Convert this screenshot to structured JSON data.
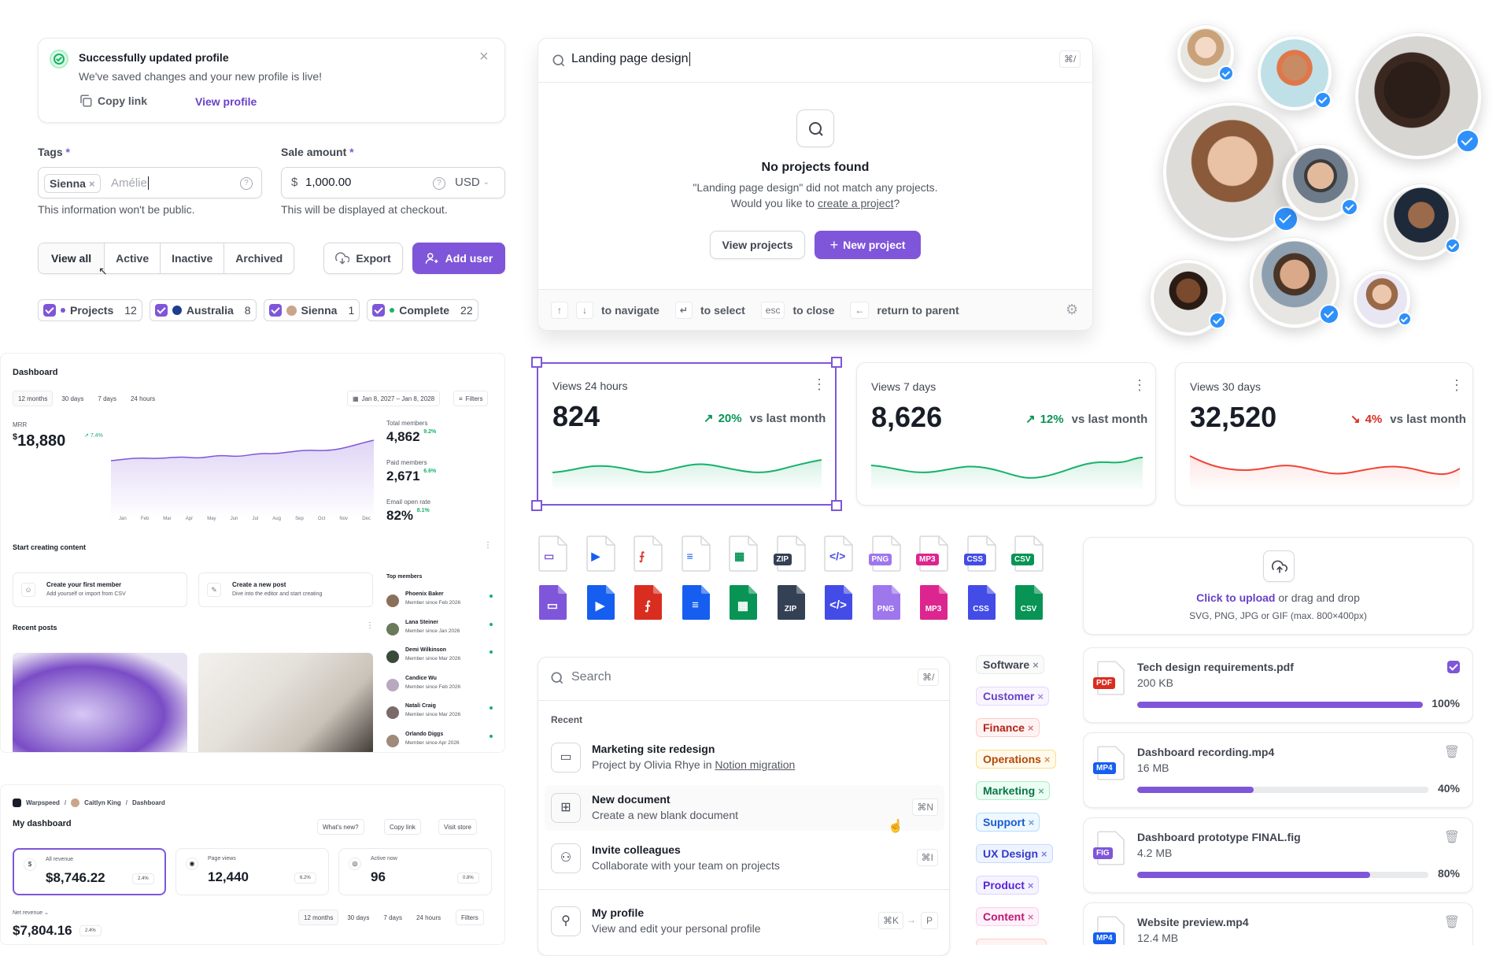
{
  "toast": {
    "title": "Successfully updated profile",
    "message": "We've saved changes and your new profile is live!",
    "copy_link": "Copy link",
    "view_profile": "View profile"
  },
  "tags_field": {
    "label": "Tags",
    "required": "*",
    "chip": "Sienna",
    "input_value": "Amélie",
    "hint": "This information won't be public."
  },
  "sale_field": {
    "label": "Sale amount",
    "required": "*",
    "currency_symbol": "$",
    "value": "1,000.00",
    "currency": "USD",
    "hint": "This will be displayed at checkout."
  },
  "filter_tabs": [
    "View all",
    "Active",
    "Inactive",
    "Archived"
  ],
  "actions": {
    "export": "Export",
    "add_user": "Add user"
  },
  "filter_chips": [
    {
      "label": "Projects",
      "count": "12",
      "dot": "#7f56d9"
    },
    {
      "label": "Australia",
      "count": "8",
      "dot": "#2e90fa"
    },
    {
      "label": "Sienna",
      "count": "1",
      "dot": "#b08968"
    },
    {
      "label": "Complete",
      "count": "22",
      "dot": "#17b26a"
    }
  ],
  "command": {
    "query": "Landing page design",
    "shortcut": "⌘/",
    "empty_title": "No projects found",
    "empty_line1": "\"Landing page design\" did not match any projects.",
    "empty_line2_pre": "Would you like to ",
    "empty_link": "create a project",
    "empty_line2_post": "?",
    "view_projects": "View projects",
    "new_project": "New project",
    "footer": {
      "navigate": "to navigate",
      "select": "to select",
      "esc": "esc",
      "close": "to close",
      "parent": "return to parent"
    }
  },
  "metrics": [
    {
      "title": "Views 24 hours",
      "value": "824",
      "delta": "20%",
      "trend": "up",
      "vs": "vs last month"
    },
    {
      "title": "Views 7 days",
      "value": "8,626",
      "delta": "12%",
      "trend": "up",
      "vs": "vs last month"
    },
    {
      "title": "Views 30 days",
      "value": "32,520",
      "delta": "4%",
      "trend": "down",
      "vs": "vs last month"
    }
  ],
  "colors": {
    "accent": "#7f56d9",
    "success": "#17b26a",
    "error": "#f04438",
    "blue": "#2e90fa"
  },
  "file_icons": [
    {
      "kind": "folder",
      "color": "#7f56d9"
    },
    {
      "kind": "video",
      "color": "#155eef"
    },
    {
      "kind": "pdf",
      "color": "#d92d20"
    },
    {
      "kind": "doc",
      "color": "#155eef"
    },
    {
      "kind": "sheet",
      "color": "#079455"
    },
    {
      "kind": "zip",
      "color": "#344054",
      "label": "ZIP"
    },
    {
      "kind": "code",
      "color": "#444ce7"
    },
    {
      "kind": "png",
      "color": "#9e77ed",
      "label": "PNG"
    },
    {
      "kind": "mp3",
      "color": "#dd2590",
      "label": "MP3"
    },
    {
      "kind": "css",
      "color": "#444ce7",
      "label": "CSS"
    },
    {
      "kind": "csv",
      "color": "#079455",
      "label": "CSV"
    }
  ],
  "upload": {
    "link": "Click to upload",
    "rest": " or drag and drop",
    "hint": "SVG, PNG, JPG or GIF (max. 800×400px)"
  },
  "uploads": [
    {
      "name": "Tech design requirements.pdf",
      "size": "200 KB",
      "pct": "100%",
      "progress": 1.0,
      "type": "PDF",
      "color": "#d92d20",
      "done": true
    },
    {
      "name": "Dashboard recording.mp4",
      "size": "16 MB",
      "pct": "40%",
      "progress": 0.4,
      "type": "MP4",
      "color": "#155eef",
      "done": false
    },
    {
      "name": "Dashboard prototype FINAL.fig",
      "size": "4.2 MB",
      "pct": "80%",
      "progress": 0.8,
      "type": "FIG",
      "color": "#7f56d9",
      "done": false
    },
    {
      "name": "Website preview.mp4",
      "size": "12.4 MB",
      "type": "MP4",
      "color": "#155eef",
      "done": false
    }
  ],
  "search": {
    "placeholder": "Search",
    "shortcut": "⌘/",
    "recent_label": "Recent",
    "items": [
      {
        "title": "Marketing site redesign",
        "sub_pre": "Project by Olivia Rhye in ",
        "sub_link": "Notion migration",
        "icon": "folder-icon"
      },
      {
        "title": "New document",
        "sub_pre": "Create a new blank document",
        "shortcut": "⌘N",
        "icon": "document-plus-icon"
      },
      {
        "title": "Invite colleagues",
        "sub_pre": "Collaborate with your team on projects",
        "shortcut": "⌘I",
        "icon": "user-plus-icon"
      },
      {
        "title": "My profile",
        "sub_pre": "View and edit your personal profile",
        "shortcut": "⌘K",
        "shortcut2": "P",
        "icon": "user-icon"
      }
    ]
  },
  "tags": [
    {
      "label": "Software",
      "bg": "#fafafa",
      "fg": "#414651",
      "bd": "#e9eaeb"
    },
    {
      "label": "Customer",
      "bg": "#f9f5ff",
      "fg": "#6941c6",
      "bd": "#e9d7fe"
    },
    {
      "label": "Finance",
      "bg": "#fef3f2",
      "fg": "#b42318",
      "bd": "#fecdca"
    },
    {
      "label": "Operations",
      "bg": "#fffaeb",
      "fg": "#b54708",
      "bd": "#fedf89"
    },
    {
      "label": "Marketing",
      "bg": "#ecfdf3",
      "fg": "#067647",
      "bd": "#abefc6"
    },
    {
      "label": "Support",
      "bg": "#eff8ff",
      "fg": "#175cd3",
      "bd": "#b2ddff"
    },
    {
      "label": "UX Design",
      "bg": "#eef4ff",
      "fg": "#3538cd",
      "bd": "#c7d7fe"
    },
    {
      "label": "Product",
      "bg": "#f4f3ff",
      "fg": "#5925dc",
      "bd": "#d9d6fe"
    },
    {
      "label": "Content",
      "bg": "#fdf2fa",
      "fg": "#c11574",
      "bd": "#fcceee"
    }
  ],
  "dash1": {
    "title": "Dashboard",
    "ranges": [
      "12 months",
      "30 days",
      "7 days",
      "24 hours"
    ],
    "date_range": "Jan 8, 2027 – Jan 8, 2028",
    "filters": "Filters",
    "mrr_label": "MRR",
    "mrr_currency": "$",
    "mrr_value": "18,880",
    "mrr_delta": "7.4%",
    "months": [
      "Jan",
      "Feb",
      "Mar",
      "Apr",
      "May",
      "Jun",
      "Jul",
      "Aug",
      "Sep",
      "Oct",
      "Nov",
      "Dec"
    ],
    "stats": [
      {
        "label": "Total members",
        "value": "4,862",
        "delta": "9.2%"
      },
      {
        "label": "Paid members",
        "value": "2,671",
        "delta": "6.6%"
      },
      {
        "label": "Email open rate",
        "value": "82%",
        "delta": "8.1%"
      }
    ],
    "start_title": "Start creating content",
    "tasks": [
      {
        "title": "Create your first member",
        "sub": "Add yourself or import from CSV"
      },
      {
        "title": "Create a new post",
        "sub": "Dive into the editor and start creating"
      }
    ],
    "recent_posts": "Recent posts",
    "top_members": "Top members",
    "members": [
      {
        "name": "Phoenix Baker",
        "since": "Member since Feb 2026"
      },
      {
        "name": "Lana Steiner",
        "since": "Member since Jan 2026"
      },
      {
        "name": "Demi Wilkinson",
        "since": "Member since Mar 2026"
      },
      {
        "name": "Candice Wu",
        "since": "Member since Feb 2026"
      },
      {
        "name": "Natali Craig",
        "since": "Member since Mar 2026"
      },
      {
        "name": "Orlando Diggs",
        "since": "Member since Apr 2026"
      }
    ]
  },
  "dash2": {
    "crumb1": "Warpspeed",
    "crumb2": "Caitlyn King",
    "crumb3": "Dashboard",
    "title": "My dashboard",
    "whats_new": "What's new?",
    "copy_link": "Copy link",
    "visit_store": "Visit store",
    "kpis": [
      {
        "label": "All revenue",
        "value": "$8,746.22",
        "delta": "2.4%"
      },
      {
        "label": "Page views",
        "value": "12,440",
        "delta": "6.2%"
      },
      {
        "label": "Active now",
        "value": "96",
        "delta": "0.8%"
      }
    ],
    "net_label": "Net revenue",
    "net_value": "$7,804.16",
    "net_delta": "2.4%",
    "ranges": [
      "12 months",
      "30 days",
      "7 days",
      "24 hours"
    ],
    "filters": "Filters"
  }
}
